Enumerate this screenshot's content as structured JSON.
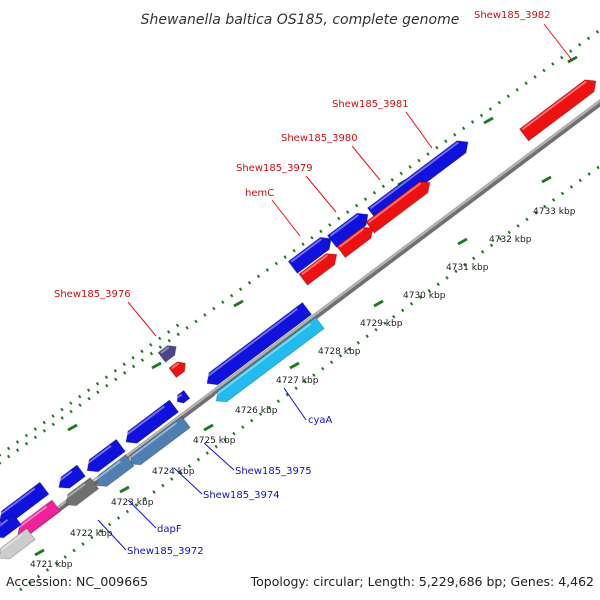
{
  "title": "Shewanella baltica OS185, complete genome",
  "footer": {
    "accession": "Accession: NC_009665",
    "info": "Topology: circular; Length: 5,229,686 bp; Genes: 4,462"
  },
  "ticks": [
    "4721 kbp",
    "4722 kbp",
    "4723 kbp",
    "4724 kbp",
    "4725 kbp",
    "4726 kbp",
    "4727 kbp",
    "4728 kbp",
    "4729 kbp",
    "4730 kbp",
    "4731 kbp",
    "4732 kbp",
    "4733 kbp"
  ],
  "forward_labels": [
    "Shew185_3982",
    "Shew185_3981",
    "Shew185_3980",
    "Shew185_3979",
    "hemC",
    "Shew185_3976"
  ],
  "reverse_labels": [
    "cyaA",
    "Shew185_3975",
    "Shew185_3974",
    "dapF",
    "Shew185_3972"
  ],
  "colors": {
    "red": "#ee1111",
    "blue": "#1111dd",
    "dark_purple": "#4a4488",
    "cyan": "#22bbee",
    "steel_blue": "#4f7fb0",
    "gray": "#707070",
    "magenta": "#ee2299",
    "light_gray": "#cccccc",
    "backbone": "#888888",
    "ticks": "#227722"
  }
}
